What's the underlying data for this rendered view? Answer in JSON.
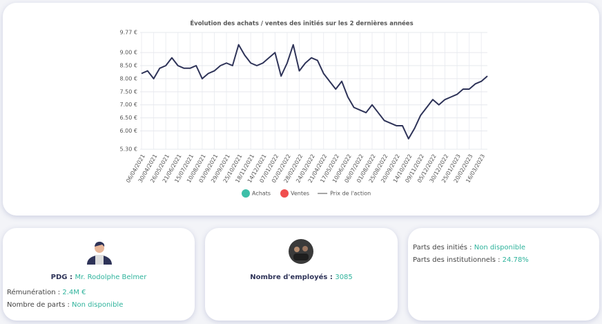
{
  "chart_data": {
    "type": "line",
    "title": "Évolution des achats / ventes des initiés sur les 2 dernières années",
    "categories": [
      "06/04/2021",
      null,
      "30/04/2021",
      null,
      "26/05/2021",
      null,
      "21/06/2021",
      null,
      "15/07/2021",
      null,
      "10/08/2021",
      null,
      "03/09/2021",
      null,
      "29/09/2021",
      null,
      "25/10/2021",
      null,
      "18/11/2021",
      null,
      "14/12/2021",
      null,
      "07/01/2022",
      null,
      "02/02/2022",
      null,
      "28/02/2022",
      null,
      "24/03/2022",
      null,
      "21/04/2022",
      null,
      "17/05/2022",
      null,
      "10/06/2022",
      null,
      "06/07/2022",
      null,
      "01/08/2022",
      null,
      "25/08/2022",
      null,
      "20/09/2022",
      null,
      "14/10/2022",
      null,
      "09/11/2022",
      null,
      "05/12/2022",
      null,
      "30/12/2022",
      null,
      "25/01/2023",
      null,
      "20/02/2023",
      null,
      "16/03/2023",
      null
    ],
    "series": [
      {
        "name": "Prix de l'action",
        "color": "#2e3358",
        "values": [
          8.2,
          8.3,
          8.0,
          8.4,
          8.5,
          8.8,
          8.5,
          8.4,
          8.4,
          8.5,
          8.0,
          8.2,
          8.3,
          8.5,
          8.6,
          8.5,
          9.3,
          8.9,
          8.6,
          8.5,
          8.6,
          8.8,
          9.0,
          8.1,
          8.6,
          9.3,
          8.3,
          8.6,
          8.8,
          8.7,
          8.2,
          7.9,
          7.6,
          7.9,
          7.3,
          6.9,
          6.8,
          6.7,
          7.0,
          6.7,
          6.4,
          6.3,
          6.2,
          6.2,
          5.7,
          6.1,
          6.6,
          6.9,
          7.2,
          7.0,
          7.2,
          7.3,
          7.4,
          7.6,
          7.6,
          7.8,
          7.9,
          8.1
        ]
      }
    ],
    "legend_markers": [
      {
        "name": "Achats",
        "color": "#3dbfa8"
      },
      {
        "name": "Ventes",
        "color": "#f04e4e"
      }
    ],
    "ylim": [
      5.3,
      9.77
    ],
    "yticks": [
      {
        "value": 5.3,
        "label": "5.30 €"
      },
      {
        "value": 6.0,
        "label": "6.00 €"
      },
      {
        "value": 6.5,
        "label": "6.50 €"
      },
      {
        "value": 7.0,
        "label": "7.00 €"
      },
      {
        "value": 7.5,
        "label": "7.50 €"
      },
      {
        "value": 8.0,
        "label": "8.00 €"
      },
      {
        "value": 8.5,
        "label": "8.50 €"
      },
      {
        "value": 9.0,
        "label": "9.00 €"
      },
      {
        "value": 9.77,
        "label": "9.77 €"
      }
    ],
    "grid": true
  },
  "cards": [
    {
      "rows": [
        {
          "label": "PDG :",
          "value": "Mr. Rodolphe Belmer"
        },
        {
          "label": "Rémunération :",
          "value": "2.4M €"
        },
        {
          "label": "Nombre de parts :",
          "value": "Non disponible"
        }
      ]
    },
    {
      "rows": [
        {
          "label": "Nombre d'employés :",
          "value": "3085"
        }
      ]
    },
    {
      "rows": [
        {
          "label": "Parts des initiés :",
          "value": "Non disponible"
        },
        {
          "label": "Parts des institutionnels :",
          "value": "24.78%"
        }
      ]
    }
  ]
}
